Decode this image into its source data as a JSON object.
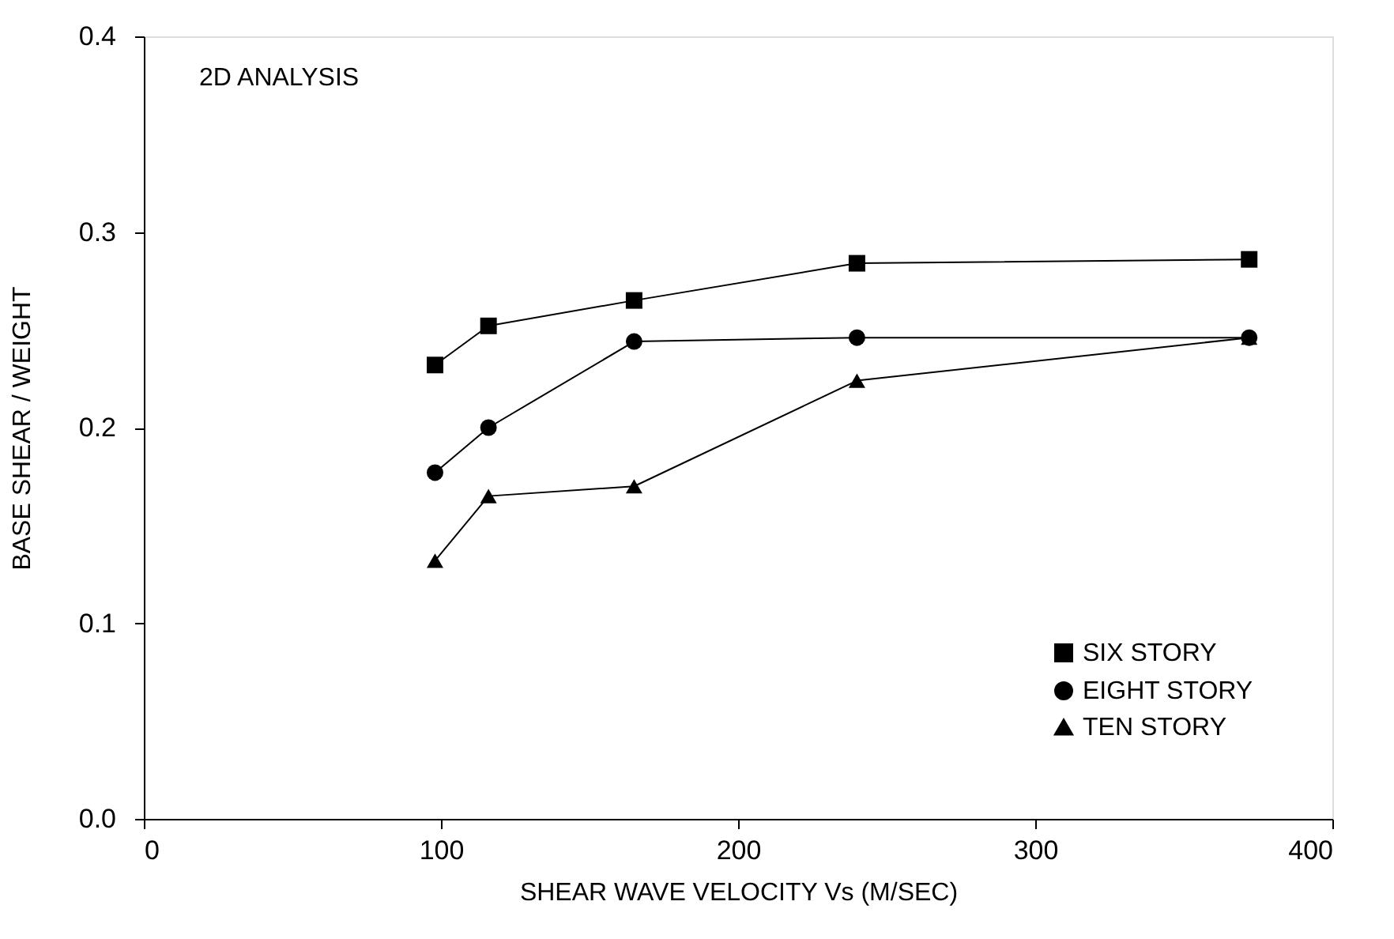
{
  "chart_data": {
    "type": "line",
    "xlabel": "SHEAR WAVE VELOCITY  Vs (M/SEC)",
    "ylabel": "BASE SHEAR / WEIGHT",
    "annotations": [
      "2D ANALYSIS"
    ],
    "x": [
      98,
      116,
      165,
      240,
      372
    ],
    "series": [
      {
        "name": "SIX STORY",
        "color": "#000000",
        "marker": "square",
        "values": [
          0.232,
          0.252,
          0.265,
          0.284,
          0.286
        ]
      },
      {
        "name": "EIGHT STORY",
        "color": "#000000",
        "marker": "circle",
        "values": [
          0.177,
          0.2,
          0.244,
          0.246,
          0.246
        ]
      },
      {
        "name": "TEN STORY",
        "color": "#000000",
        "marker": "triangle",
        "values": [
          0.132,
          0.165,
          0.17,
          0.224,
          0.246
        ]
      }
    ],
    "xlim": [
      0,
      400
    ],
    "xticks": [
      0,
      100,
      200,
      300,
      400
    ],
    "ylim": [
      0,
      0.4
    ],
    "yticks": [
      {
        "value": 0,
        "label": "0.0"
      },
      0.1,
      0.2,
      0.3,
      0.4
    ],
    "grid": false,
    "legend": "bottom right",
    "line_style": "solid"
  }
}
